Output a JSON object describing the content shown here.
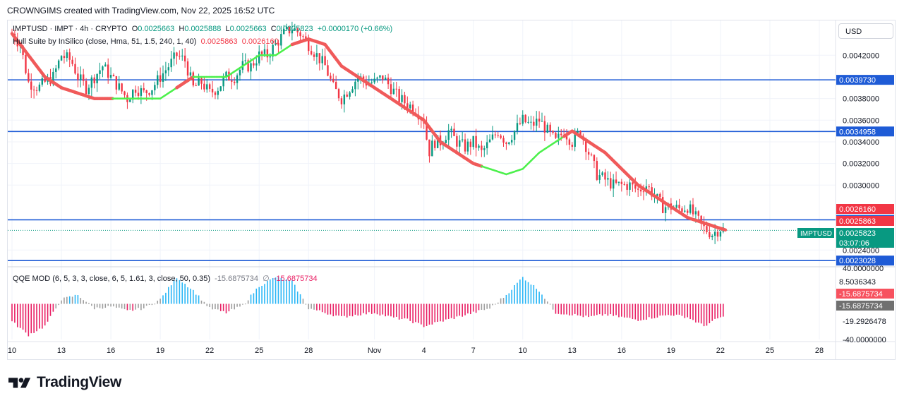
{
  "header": {
    "caption": "CROWNGIMS created with TradingView.com, Nov 22, 2025 16:52 UTC"
  },
  "currency_button": "USD",
  "legend": {
    "symbol": "IMPTUSD · IMPT · 4h · CRYPTO",
    "o_label": "O",
    "o_value": "0.0025663",
    "h_label": "H",
    "h_value": "0.0025888",
    "l_label": "L",
    "l_value": "0.0025663",
    "c_label": "C",
    "c_value": "0.0025823",
    "change": "+0.0000170 (+0.66%)",
    "indicator_name": "Hull Suite by InSilico (close, Hma, 51, 1.5, 240, 1, 40)",
    "indicator_v1": "0.0025863",
    "indicator_v2": "0.0026160",
    "qqe_name": "QQE MOD (6, 5, 3, 3, close, 6, 5, 1.61, 3, close, 50, 0.35)",
    "qqe_v1": "-15.6875734",
    "qqe_symbol": "∅",
    "qqe_v2": "-15.6875734"
  },
  "brand": {
    "name": "TradingView"
  },
  "colors": {
    "up": "#089981",
    "down": "#f23645",
    "hull_up": "#4cf04c",
    "hull_down": "#f05a5a",
    "hline": "#1e5bd6",
    "qqe_blue": "#29b6f6",
    "qqe_pink": "#e91e63",
    "qqe_gray": "#9e9e9e"
  },
  "chart_data": [
    {
      "type": "candlestick",
      "title": "IMPTUSD · IMPT · 4h · CRYPTO",
      "ylim": [
        0.0022585,
        0.0045216
      ],
      "y_ticks": [
        "0.0042000",
        "0.0038000",
        "0.0036000",
        "0.0034000",
        "0.0032000",
        "0.0030000",
        "0.0024000"
      ],
      "x_ticks": [
        {
          "label": "10",
          "day": 10
        },
        {
          "label": "13",
          "day": 13
        },
        {
          "label": "16",
          "day": 16
        },
        {
          "label": "19",
          "day": 19
        },
        {
          "label": "22",
          "day": 22
        },
        {
          "label": "25",
          "day": 25
        },
        {
          "label": "28",
          "day": 28
        },
        {
          "label": "Nov",
          "day": 32
        },
        {
          "label": "4",
          "day": 35
        },
        {
          "label": "7",
          "day": 38
        },
        {
          "label": "10",
          "day": 41
        },
        {
          "label": "13",
          "day": 44
        },
        {
          "label": "16",
          "day": 47
        },
        {
          "label": "19",
          "day": 50
        },
        {
          "label": "22",
          "day": 53
        },
        {
          "label": "25",
          "day": 56
        },
        {
          "label": "28",
          "day": 59
        }
      ],
      "close_path": [
        [
          10,
          0.0044
        ],
        [
          10.5,
          0.0043
        ],
        [
          11,
          0.00395
        ],
        [
          11.6,
          0.0039
        ],
        [
          12,
          0.00395
        ],
        [
          12.5,
          0.004
        ],
        [
          13,
          0.0042
        ],
        [
          13.6,
          0.00415
        ],
        [
          14,
          0.004
        ],
        [
          14.5,
          0.0039
        ],
        [
          15,
          0.004
        ],
        [
          15.5,
          0.0041
        ],
        [
          16,
          0.004
        ],
        [
          16.5,
          0.0039
        ],
        [
          17,
          0.0038
        ],
        [
          17.5,
          0.0039
        ],
        [
          18,
          0.00385
        ],
        [
          18.5,
          0.0039
        ],
        [
          19,
          0.004
        ],
        [
          19.5,
          0.0041
        ],
        [
          20,
          0.0042
        ],
        [
          20.5,
          0.00415
        ],
        [
          21,
          0.0039
        ],
        [
          21.5,
          0.00395
        ],
        [
          22,
          0.00385
        ],
        [
          22.5,
          0.0039
        ],
        [
          23,
          0.004
        ],
        [
          23.5,
          0.004
        ],
        [
          24,
          0.0041
        ],
        [
          24.5,
          0.0041
        ],
        [
          25,
          0.0042
        ],
        [
          25.5,
          0.0042
        ],
        [
          26,
          0.0043
        ],
        [
          26.5,
          0.0044
        ],
        [
          27,
          0.00445
        ],
        [
          27.5,
          0.0044
        ],
        [
          28,
          0.0043
        ],
        [
          28.5,
          0.0042
        ],
        [
          29,
          0.0041
        ],
        [
          29.5,
          0.0039
        ],
        [
          30,
          0.0038
        ],
        [
          30.5,
          0.0039
        ],
        [
          31,
          0.004
        ],
        [
          31.5,
          0.00395
        ],
        [
          32,
          0.00395
        ],
        [
          32.5,
          0.004
        ],
        [
          33,
          0.0039
        ],
        [
          33.5,
          0.0038
        ],
        [
          34,
          0.00375
        ],
        [
          34.5,
          0.0037
        ],
        [
          35,
          0.0036
        ],
        [
          35.3,
          0.0033
        ],
        [
          35.6,
          0.0034
        ],
        [
          36,
          0.0034
        ],
        [
          36.5,
          0.0035
        ],
        [
          37,
          0.0034
        ],
        [
          37.5,
          0.00335
        ],
        [
          38,
          0.0034
        ],
        [
          38.5,
          0.0033
        ],
        [
          39,
          0.0034
        ],
        [
          39.5,
          0.0035
        ],
        [
          40,
          0.0034
        ],
        [
          40.5,
          0.0035
        ],
        [
          41,
          0.0036
        ],
        [
          41.5,
          0.00355
        ],
        [
          42,
          0.0036
        ],
        [
          42.5,
          0.0035
        ],
        [
          43,
          0.0034
        ],
        [
          43.5,
          0.0035
        ],
        [
          44,
          0.0034
        ],
        [
          44.5,
          0.0035
        ],
        [
          45,
          0.0033
        ],
        [
          45.5,
          0.0031
        ],
        [
          46,
          0.00305
        ],
        [
          46.5,
          0.003
        ],
        [
          47,
          0.003
        ],
        [
          47.5,
          0.003
        ],
        [
          48,
          0.00295
        ],
        [
          48.5,
          0.003
        ],
        [
          49,
          0.0029
        ],
        [
          49.5,
          0.0028
        ],
        [
          50,
          0.0028
        ],
        [
          50.5,
          0.00278
        ],
        [
          51,
          0.0028
        ],
        [
          51.5,
          0.0027
        ],
        [
          52,
          0.0026
        ],
        [
          52.5,
          0.00255
        ],
        [
          53,
          0.0026
        ],
        [
          53.3,
          0.0025823
        ]
      ],
      "hull_suite": [
        [
          10,
          0.0044
        ],
        [
          11,
          0.0042
        ],
        [
          12,
          0.004
        ],
        [
          13,
          0.0039
        ],
        [
          14,
          0.00385
        ],
        [
          15,
          0.0038
        ],
        [
          16,
          0.0038
        ],
        [
          17,
          0.0038
        ],
        [
          18,
          0.0038
        ],
        [
          19,
          0.0038
        ],
        [
          20,
          0.0039
        ],
        [
          21,
          0.004
        ],
        [
          22,
          0.004
        ],
        [
          23,
          0.004
        ],
        [
          24,
          0.0041
        ],
        [
          25,
          0.0042
        ],
        [
          26,
          0.0042
        ],
        [
          27,
          0.0043
        ],
        [
          28,
          0.00435
        ],
        [
          29,
          0.0043
        ],
        [
          30,
          0.0041
        ],
        [
          31,
          0.004
        ],
        [
          32,
          0.0039
        ],
        [
          33,
          0.0038
        ],
        [
          34,
          0.0037
        ],
        [
          35,
          0.0036
        ],
        [
          36,
          0.0034
        ],
        [
          37,
          0.0033
        ],
        [
          38,
          0.0032
        ],
        [
          39,
          0.00315
        ],
        [
          40,
          0.0031
        ],
        [
          41,
          0.00315
        ],
        [
          42,
          0.0033
        ],
        [
          43,
          0.0034
        ],
        [
          44,
          0.0035
        ],
        [
          45,
          0.0034
        ],
        [
          46,
          0.0033
        ],
        [
          47,
          0.00315
        ],
        [
          48,
          0.003
        ],
        [
          49,
          0.0029
        ],
        [
          50,
          0.0028
        ],
        [
          51,
          0.0027
        ],
        [
          52,
          0.00265
        ],
        [
          53,
          0.0026
        ],
        [
          53.3,
          0.0025863
        ]
      ],
      "hull_trend_up_segments": [
        [
          16,
          20
        ],
        [
          21,
          27
        ],
        [
          38.5,
          43.5
        ]
      ],
      "horizontal_levels": [
        "0.0039730",
        "0.0034958",
        "0.0026795",
        "0.0023028"
      ],
      "price_labels": [
        {
          "value": "0.0039730",
          "bg": "#1e5bd6"
        },
        {
          "value": "0.0034958",
          "bg": "#1e5bd6"
        },
        {
          "value": "0.0026795",
          "bg": "#1e5bd6"
        },
        {
          "value": "0.0026160",
          "bg": "#f23645"
        },
        {
          "value": "0.0025863",
          "bg": "#f23645"
        },
        {
          "value": "0.0025823",
          "bg": "#089981"
        },
        {
          "value": "0.0023028",
          "bg": "#1e5bd6"
        }
      ],
      "last_price_tag": "IMPTUSD",
      "countdown": "03:07:06"
    },
    {
      "type": "bar",
      "title": "QQE MOD (6, 5, 3, 3, close, 6, 5, 1.61, 3, close, 50, 0.35)",
      "ylim": [
        -40,
        40
      ],
      "y_ticks": [
        "40.0000000",
        "-19.2926478",
        "-40.0000000"
      ],
      "values_by_day": [
        [
          10,
          -20
        ],
        [
          11,
          -35
        ],
        [
          12,
          -25
        ],
        [
          13,
          5
        ],
        [
          14,
          10
        ],
        [
          15,
          -5
        ],
        [
          16,
          -3
        ],
        [
          17,
          -8
        ],
        [
          18,
          -5
        ],
        [
          19,
          5
        ],
        [
          20,
          30
        ],
        [
          21,
          15
        ],
        [
          22,
          -5
        ],
        [
          23,
          -10
        ],
        [
          24,
          -2
        ],
        [
          25,
          20
        ],
        [
          26,
          30
        ],
        [
          27,
          25
        ],
        [
          28,
          -5
        ],
        [
          29,
          -10
        ],
        [
          30,
          -15
        ],
        [
          31,
          -12
        ],
        [
          32,
          -10
        ],
        [
          33,
          -15
        ],
        [
          34,
          -18
        ],
        [
          35,
          -25
        ],
        [
          36,
          -20
        ],
        [
          37,
          -15
        ],
        [
          38,
          -10
        ],
        [
          39,
          -5
        ],
        [
          40,
          10
        ],
        [
          41,
          30
        ],
        [
          42,
          15
        ],
        [
          43,
          -10
        ],
        [
          44,
          -12
        ],
        [
          45,
          -15
        ],
        [
          46,
          -12
        ],
        [
          47,
          -15
        ],
        [
          48,
          -18
        ],
        [
          49,
          -15
        ],
        [
          50,
          -12
        ],
        [
          51,
          -15
        ],
        [
          52,
          -25
        ],
        [
          53,
          -15
        ]
      ],
      "price_labels": [
        {
          "value": "8.5036343",
          "bg": "#ffffff"
        },
        {
          "value": "-15.6875734",
          "bg": "#f7525f"
        },
        {
          "value": "-15.6875734",
          "bg": "#707070"
        }
      ]
    }
  ]
}
